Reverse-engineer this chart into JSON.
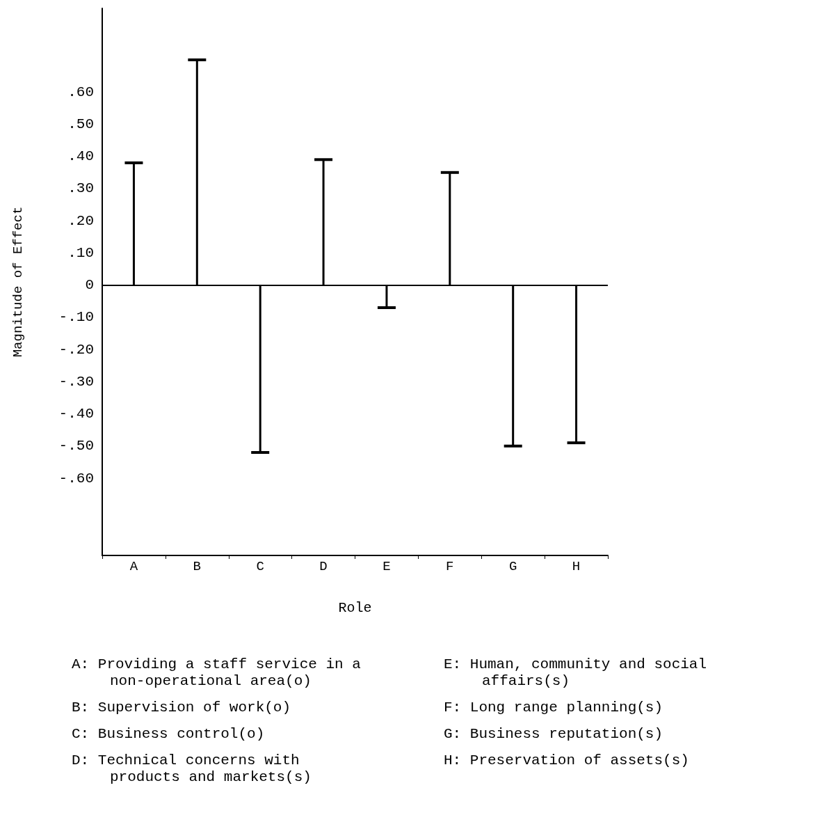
{
  "chart_data": {
    "type": "bar",
    "xlabel": "Role",
    "ylabel": "Magnitude of Effect",
    "categories": [
      "A",
      "B",
      "C",
      "D",
      "E",
      "F",
      "G",
      "H"
    ],
    "values": [
      0.38,
      0.7,
      -0.52,
      0.39,
      -0.07,
      0.35,
      -0.5,
      -0.49
    ],
    "color": "#000000",
    "ylim": [
      -0.84,
      0.86
    ],
    "yticks": [
      {
        "value": -0.6,
        "label": "-.60"
      },
      {
        "value": -0.5,
        "label": "-.50"
      },
      {
        "value": -0.4,
        "label": "-.40"
      },
      {
        "value": -0.3,
        "label": "-.30"
      },
      {
        "value": -0.2,
        "label": "-.20"
      },
      {
        "value": -0.1,
        "label": "-.10"
      },
      0,
      {
        "value": 0.1,
        "label": ".10"
      },
      {
        "value": 0.2,
        "label": ".20"
      },
      {
        "value": 0.3,
        "label": ".30"
      },
      {
        "value": 0.4,
        "label": ".40"
      },
      {
        "value": 0.5,
        "label": ".50"
      },
      {
        "value": 0.6,
        "label": ".60"
      }
    ],
    "ref_lines": [
      {
        "axis": "y",
        "value": 0
      }
    ],
    "grid": false,
    "annotations": [
      "A: Providing a staff service in a non-operational area(o)",
      "B: Supervision of work(o)",
      "C: Business control(o)",
      "D: Technical concerns with products and markets(s)",
      "E: Human, community and social affairs(s)",
      "F: Long range planning(s)",
      "G: Business reputation(s)",
      "H: Preservation of assets(s)"
    ]
  }
}
